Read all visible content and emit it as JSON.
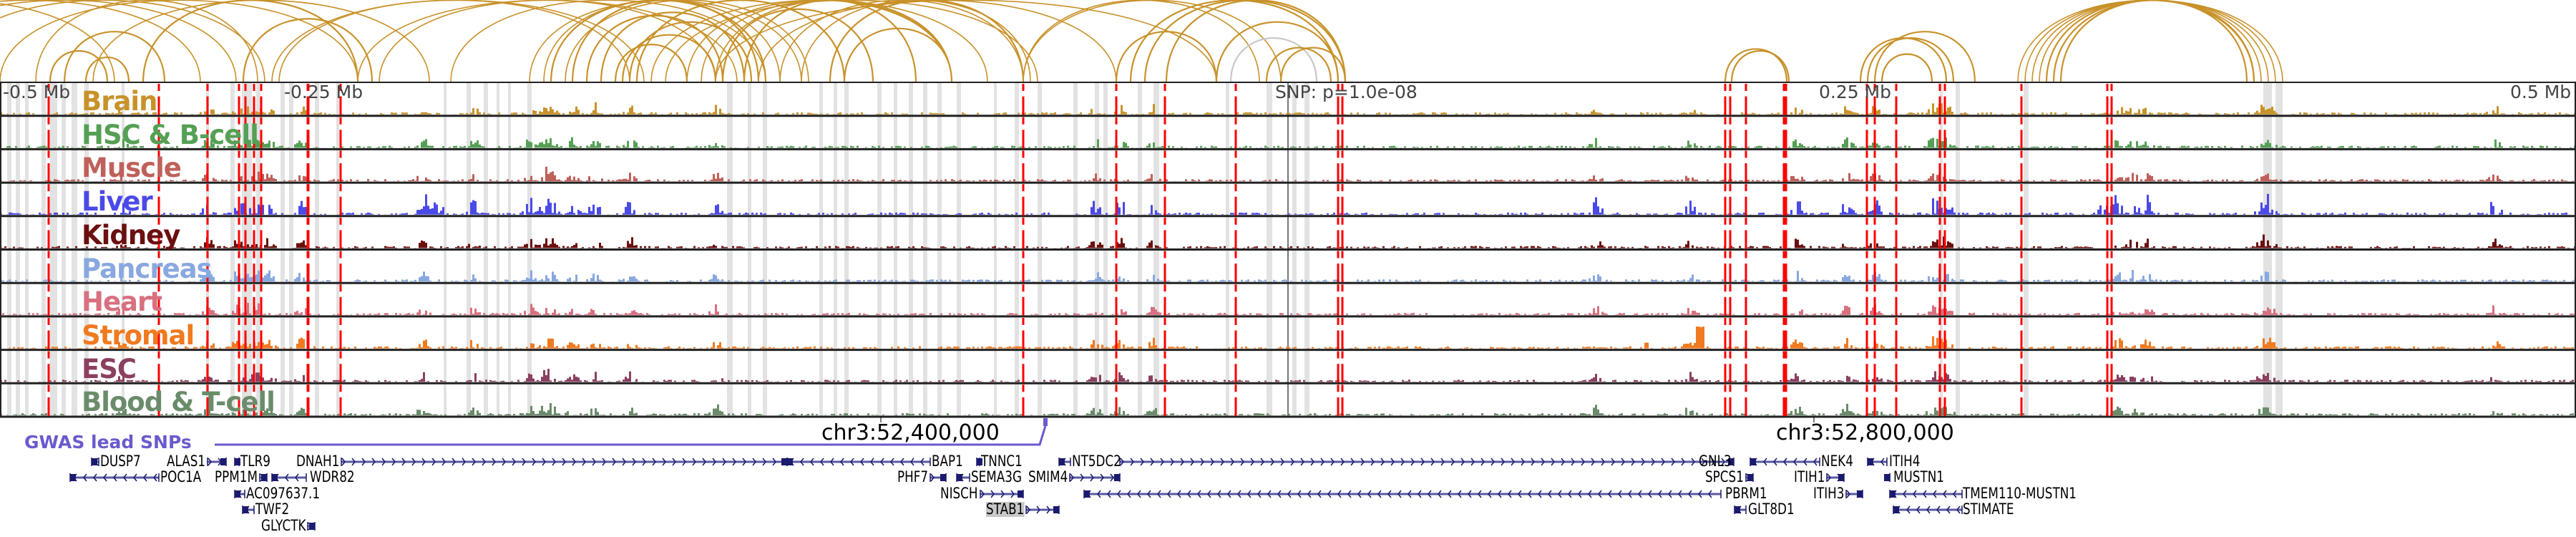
{
  "axis": {
    "labels": [
      {
        "text": "-0.5 Mb",
        "mb": -0.5
      },
      {
        "text": "-0.25 Mb",
        "mb": -0.25
      },
      {
        "text": "SNP: p=1.0e-08",
        "mb": 0
      },
      {
        "text": "0.25 Mb",
        "mb": 0.25
      },
      {
        "text": "0.5 Mb",
        "mb": 0.5
      }
    ]
  },
  "tracks": [
    {
      "name": "Brain",
      "color": "#c8922a"
    },
    {
      "name": "HSC & B-cell",
      "color": "#55a055"
    },
    {
      "name": "Muscle",
      "color": "#c0605a"
    },
    {
      "name": "Liver",
      "color": "#4a4ae8"
    },
    {
      "name": "Kidney",
      "color": "#6b0f0f"
    },
    {
      "name": "Pancreas",
      "color": "#88a8e0"
    },
    {
      "name": "Heart",
      "color": "#d87080"
    },
    {
      "name": "Stromal",
      "color": "#f07a20"
    },
    {
      "name": "ESC",
      "color": "#8b4060"
    },
    {
      "name": "Blood & T-cell",
      "color": "#6a8c6a"
    }
  ],
  "coordinates": [
    "chr3:52,400,000",
    "chr3:52,800,000"
  ],
  "gwas": {
    "label": "GWAS lead SNPs",
    "color": "#6a5acd"
  },
  "colors": {
    "arc": "#c8922a",
    "snp_line": "#ff0000",
    "highlight": "#e2e2e2",
    "gene": "#1a1a6e"
  },
  "genes": [
    {
      "name": "DUSP7",
      "strand": "-"
    },
    {
      "name": "POC1A",
      "strand": "-"
    },
    {
      "name": "ALAS1",
      "strand": "+"
    },
    {
      "name": "TLR9",
      "strand": "-"
    },
    {
      "name": "PPM1M",
      "strand": "+"
    },
    {
      "name": "WDR82",
      "strand": "-"
    },
    {
      "name": "AC097637.1",
      "strand": "-"
    },
    {
      "name": "TWF2",
      "strand": "-"
    },
    {
      "name": "GLYCTK",
      "strand": "+"
    },
    {
      "name": "DNAH1",
      "strand": "+"
    },
    {
      "name": "BAP1",
      "strand": "-"
    },
    {
      "name": "PHF7",
      "strand": "+"
    },
    {
      "name": "SEMA3G",
      "strand": "-"
    },
    {
      "name": "TNNC1",
      "strand": "-"
    },
    {
      "name": "NISCH",
      "strand": "+"
    },
    {
      "name": "STAB1",
      "strand": "+",
      "highlighted": true
    },
    {
      "name": "NT5DC2",
      "strand": "-"
    },
    {
      "name": "SMIM4",
      "strand": "+"
    },
    {
      "name": "GNL3",
      "strand": "+"
    },
    {
      "name": "SPCS1",
      "strand": "+"
    },
    {
      "name": "PBRM1",
      "strand": "-"
    },
    {
      "name": "GLT8D1",
      "strand": "-"
    },
    {
      "name": "NEK4",
      "strand": "-"
    },
    {
      "name": "ITIH1",
      "strand": "+"
    },
    {
      "name": "ITIH3",
      "strand": "+"
    },
    {
      "name": "ITIH4",
      "strand": "-"
    },
    {
      "name": "MUSTN1",
      "strand": "+"
    },
    {
      "name": "TMEM110-MUSTN1",
      "strand": "-"
    },
    {
      "name": "STIMATE",
      "strand": "-"
    }
  ]
}
